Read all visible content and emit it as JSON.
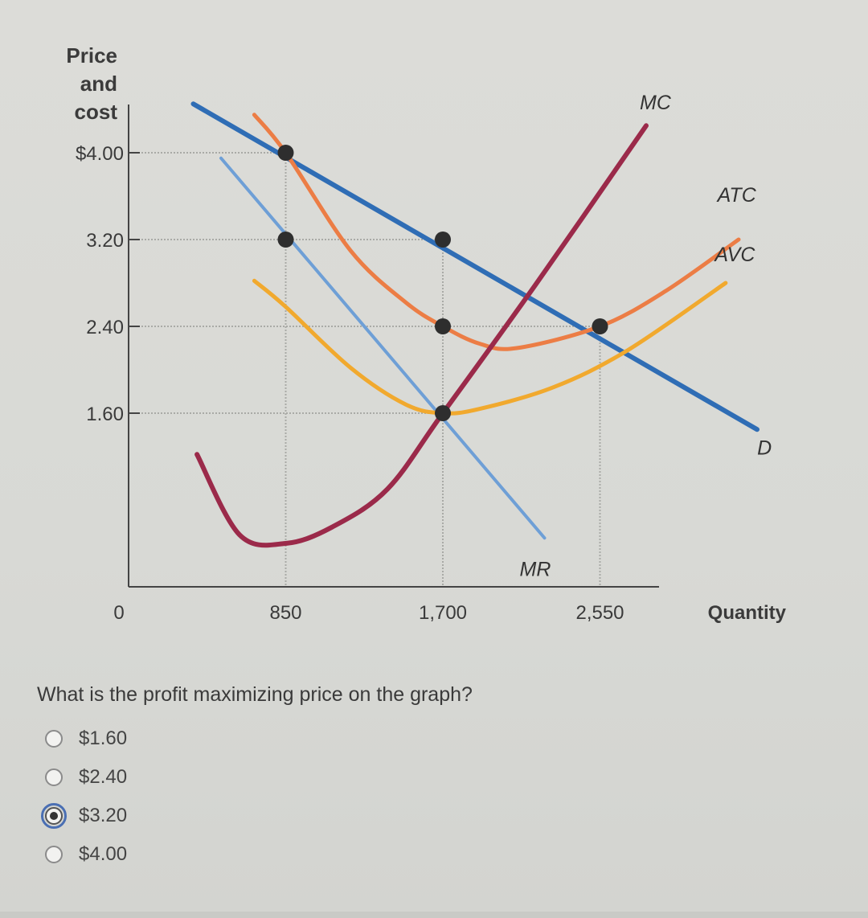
{
  "chart_data": {
    "type": "line",
    "ylabel": [
      "Price",
      "and",
      "cost"
    ],
    "xlabel": "Quantity",
    "origin_label": "0",
    "xlim": [
      0,
      3400
    ],
    "ylim": [
      0,
      4.4
    ],
    "y_ticks": [
      {
        "value": 4.0,
        "label": "$4.00"
      },
      {
        "value": 3.2,
        "label": "3.20"
      },
      {
        "value": 2.4,
        "label": "2.40"
      },
      {
        "value": 1.6,
        "label": "1.60"
      }
    ],
    "x_ticks": [
      {
        "value": 850,
        "label": "850"
      },
      {
        "value": 1700,
        "label": "1,700"
      },
      {
        "value": 2550,
        "label": "2,550"
      }
    ],
    "series": [
      {
        "name": "D",
        "color": "#2f6db5",
        "width": 6,
        "points": [
          [
            350,
            4.45
          ],
          [
            3400,
            1.45
          ]
        ]
      },
      {
        "name": "MR",
        "color": "#6e9fd6",
        "width": 4,
        "points": [
          [
            500,
            3.95
          ],
          [
            2250,
            0.45
          ]
        ]
      },
      {
        "name": "ATC",
        "color": "#ec7d45",
        "width": 5,
        "points": [
          [
            680,
            4.35
          ],
          [
            850,
            4.0
          ],
          [
            1200,
            3.1
          ],
          [
            1500,
            2.62
          ],
          [
            1700,
            2.4
          ],
          [
            1900,
            2.24
          ],
          [
            2100,
            2.2
          ],
          [
            2550,
            2.4
          ],
          [
            2900,
            2.72
          ],
          [
            3300,
            3.2
          ]
        ]
      },
      {
        "name": "AVC",
        "color": "#f1a92e",
        "width": 5,
        "points": [
          [
            680,
            2.82
          ],
          [
            850,
            2.58
          ],
          [
            1200,
            2.02
          ],
          [
            1500,
            1.68
          ],
          [
            1700,
            1.6
          ],
          [
            1900,
            1.64
          ],
          [
            2300,
            1.84
          ],
          [
            2700,
            2.18
          ],
          [
            3230,
            2.8
          ]
        ]
      },
      {
        "name": "MC",
        "color": "#9b2a4a",
        "width": 6,
        "points": [
          [
            370,
            1.22
          ],
          [
            600,
            0.48
          ],
          [
            850,
            0.4
          ],
          [
            1100,
            0.55
          ],
          [
            1400,
            0.9
          ],
          [
            1700,
            1.6
          ],
          [
            2200,
            2.78
          ],
          [
            2800,
            4.25
          ]
        ]
      }
    ],
    "points": [
      {
        "x": 850,
        "y": 4.0
      },
      {
        "x": 850,
        "y": 3.2
      },
      {
        "x": 1700,
        "y": 3.2
      },
      {
        "x": 1700,
        "y": 2.4
      },
      {
        "x": 1700,
        "y": 1.6
      },
      {
        "x": 2550,
        "y": 2.4
      }
    ],
    "guides": {
      "horizontal": [
        [
          850,
          4.0
        ],
        [
          1700,
          3.2
        ],
        [
          2550,
          2.4
        ],
        [
          1700,
          1.6
        ]
      ],
      "vertical": [
        [
          850,
          4.0
        ],
        [
          1700,
          3.2
        ],
        [
          2550,
          2.4
        ]
      ]
    },
    "labels": [
      {
        "text": "MC",
        "x": 2850,
        "y": 4.4
      },
      {
        "text": "ATC",
        "x": 3290,
        "y": 3.55
      },
      {
        "text": "AVC",
        "x": 3280,
        "y": 3.0
      },
      {
        "text": "D",
        "x": 3440,
        "y": 1.22
      },
      {
        "text": "MR",
        "x": 2200,
        "y": 0.1
      }
    ]
  },
  "question": {
    "text": "What is the profit maximizing price on the graph?",
    "options": [
      {
        "label": "$1.60",
        "selected": false
      },
      {
        "label": "$2.40",
        "selected": false
      },
      {
        "label": "$3.20",
        "selected": true
      },
      {
        "label": "$4.00",
        "selected": false
      }
    ]
  }
}
